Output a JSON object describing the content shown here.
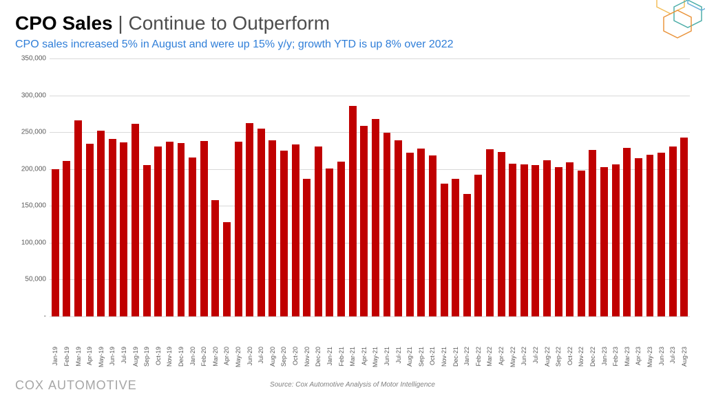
{
  "title": {
    "main": "CPO Sales",
    "separator": " | ",
    "sub": "Continue to Outperform",
    "main_color": "#000000",
    "sub_color": "#4d4d4d",
    "fontsize": 28
  },
  "subtitle": {
    "text": "CPO sales increased 5% in August and were up 15% y/y; growth YTD is up 8% over 2022",
    "color": "#2f7ed8",
    "fontsize": 16
  },
  "chart": {
    "type": "bar",
    "bar_color": "#c00000",
    "background_color": "#ffffff",
    "grid_color": "#d9d9d9",
    "axis_label_color": "#595959",
    "axis_fontsize": 10,
    "ylim": [
      0,
      350000
    ],
    "yticks": [
      0,
      50000,
      100000,
      150000,
      200000,
      250000,
      300000,
      350000
    ],
    "ytick_labels": [
      "-",
      "50,000",
      "100,000",
      "150,000",
      "200,000",
      "250,000",
      "300,000",
      "350,000"
    ],
    "bar_width_ratio": 0.66,
    "categories": [
      "Jan-19",
      "Feb-19",
      "Mar-19",
      "Apr-19",
      "May-19",
      "Jun-19",
      "Jul-19",
      "Aug-19",
      "Sep-19",
      "Oct-19",
      "Nov-19",
      "Dec-19",
      "Jan-20",
      "Feb-20",
      "Mar-20",
      "Apr-20",
      "May-20",
      "Jun-20",
      "Jul-20",
      "Aug-20",
      "Sep-20",
      "Oct-20",
      "Nov-20",
      "Dec-20",
      "Jan-21",
      "Feb-21",
      "Mar-21",
      "Apr-21",
      "May-21",
      "Jun-21",
      "Jul-21",
      "Aug-21",
      "Sep-21",
      "Oct-21",
      "Nov-21",
      "Dec-21",
      "Jan-22",
      "Feb-22",
      "Mar-22",
      "Apr-22",
      "May-22",
      "Jun-22",
      "Jul-22",
      "Aug-22",
      "Sep-22",
      "Oct-22",
      "Nov-22",
      "Dec-22",
      "Jan-23",
      "Feb-23",
      "Mar-23",
      "Apr-23",
      "May-23",
      "Jun-23",
      "Jul-23",
      "Aug-23"
    ],
    "values": [
      200000,
      211000,
      266000,
      234000,
      252000,
      241000,
      236000,
      261000,
      205000,
      231000,
      237000,
      235000,
      216000,
      238000,
      158000,
      128000,
      237000,
      262000,
      255000,
      239000,
      225000,
      233000,
      187000,
      231000,
      201000,
      210000,
      286000,
      259000,
      268000,
      249000,
      239000,
      222000,
      228000,
      218000,
      180000,
      187000,
      166000,
      192000,
      227000,
      223000,
      207000,
      206000,
      205000,
      212000,
      203000,
      209000,
      198000,
      226000,
      203000,
      206000,
      229000,
      215000,
      219000,
      222000,
      231000,
      243000
    ]
  },
  "footer": {
    "source_text": "Source: Cox Automotive Analysis of Motor Intelligence",
    "source_color": "#7f7f7f",
    "source_fontsize": 10,
    "logo_cox": "COX ",
    "logo_auto": "AUTOMOTIVE",
    "logo_color": "#a6a6a6"
  },
  "decoration": {
    "hex_colors": [
      "#f2b84b",
      "#3aa6a0",
      "#5aa7d6",
      "#e88a2a"
    ]
  }
}
